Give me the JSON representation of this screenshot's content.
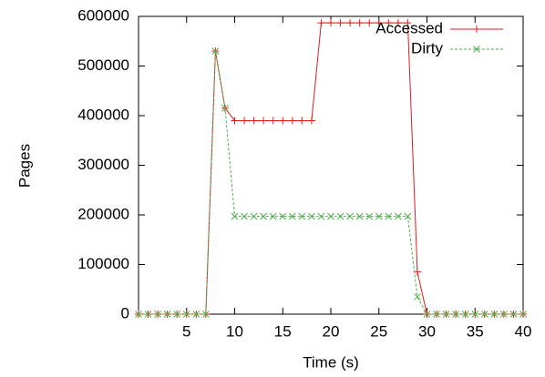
{
  "chart_data": {
    "type": "line",
    "xlabel": "Time (s)",
    "ylabel": "Pages",
    "x": [
      0,
      1,
      2,
      3,
      4,
      5,
      6,
      7,
      8,
      9,
      10,
      11,
      12,
      13,
      14,
      15,
      16,
      17,
      18,
      19,
      20,
      21,
      22,
      23,
      24,
      25,
      26,
      27,
      28,
      29,
      30,
      31,
      32,
      33,
      34,
      35,
      36,
      37,
      38,
      39,
      40
    ],
    "series": [
      {
        "name": "Accessed",
        "color": "#e41a1c",
        "marker": "+",
        "dashed": false,
        "values": [
          0,
          0,
          0,
          0,
          0,
          0,
          0,
          0,
          530000,
          415000,
          390000,
          390000,
          390000,
          390000,
          390000,
          390000,
          390000,
          390000,
          390000,
          587000,
          587000,
          587000,
          587000,
          587000,
          587000,
          587000,
          587000,
          587000,
          587000,
          85000,
          0,
          0,
          0,
          0,
          0,
          0,
          0,
          0,
          0,
          0,
          0
        ]
      },
      {
        "name": "Dirty",
        "color": "#4daf4a",
        "marker": "x",
        "dashed": true,
        "values": [
          0,
          0,
          0,
          0,
          0,
          0,
          0,
          0,
          530000,
          415000,
          197000,
          197000,
          197000,
          197000,
          197000,
          197000,
          197000,
          197000,
          197000,
          197000,
          197000,
          197000,
          197000,
          197000,
          197000,
          197000,
          197000,
          197000,
          197000,
          35000,
          0,
          0,
          0,
          0,
          0,
          0,
          0,
          0,
          0,
          0,
          0
        ]
      }
    ],
    "xlim": [
      0,
      40
    ],
    "xticks": [
      5,
      10,
      15,
      20,
      25,
      30,
      35,
      40
    ],
    "ylim": [
      0,
      600000
    ],
    "yticks": [
      0,
      100000,
      200000,
      300000,
      400000,
      500000,
      600000
    ],
    "legend": "top right"
  }
}
